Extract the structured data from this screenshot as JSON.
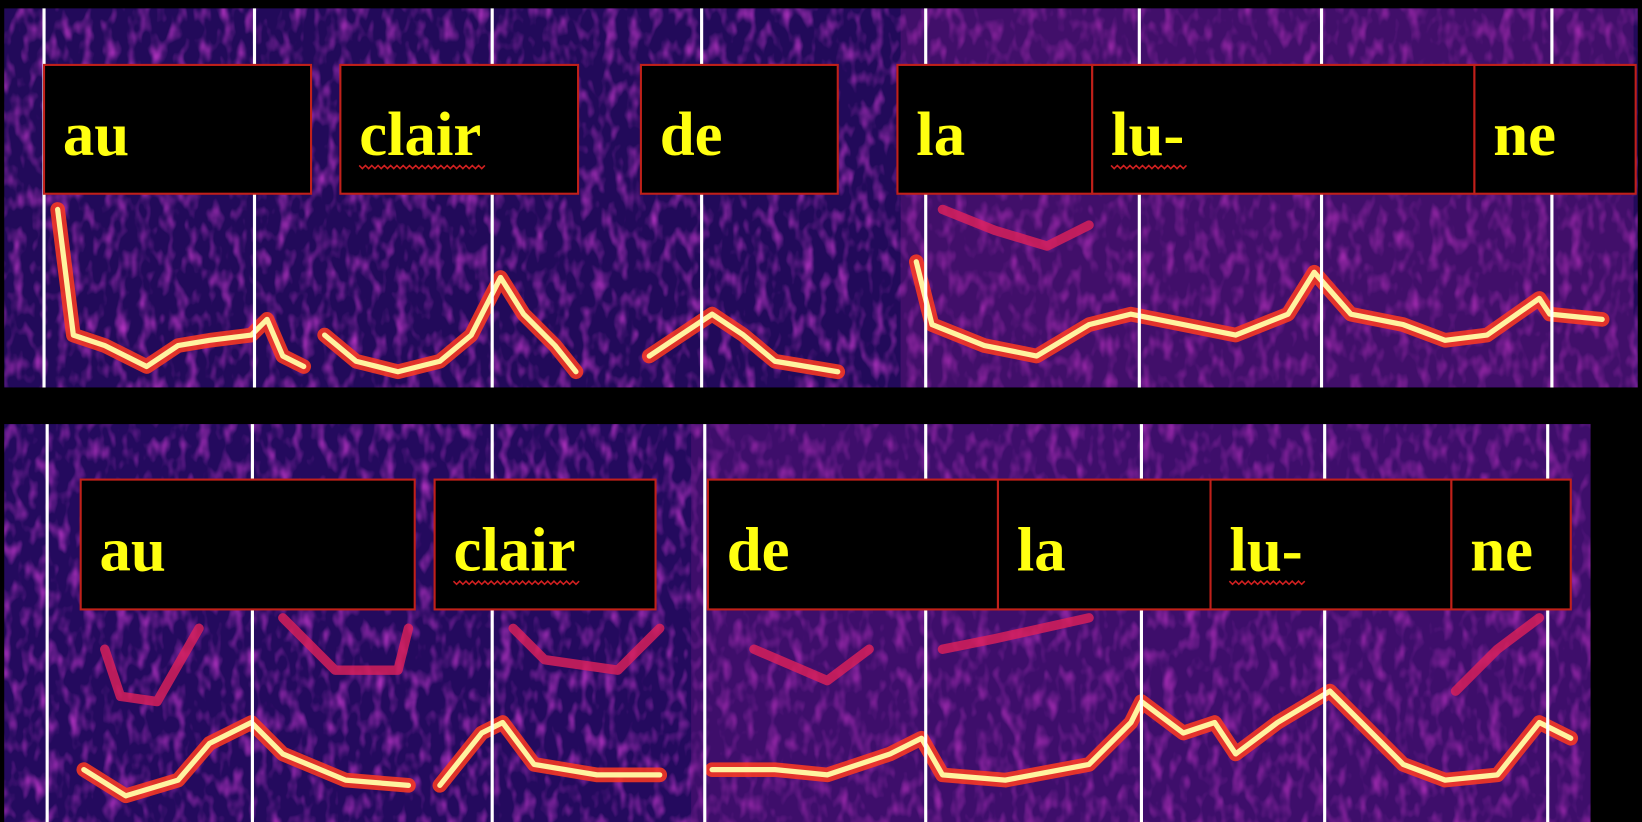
{
  "panels": [
    {
      "words": [
        "au",
        "clair",
        "de",
        "la",
        "lu-",
        "ne"
      ]
    },
    {
      "words": [
        "au",
        "clair",
        "de",
        "la",
        "lu-",
        "ne"
      ]
    }
  ]
}
